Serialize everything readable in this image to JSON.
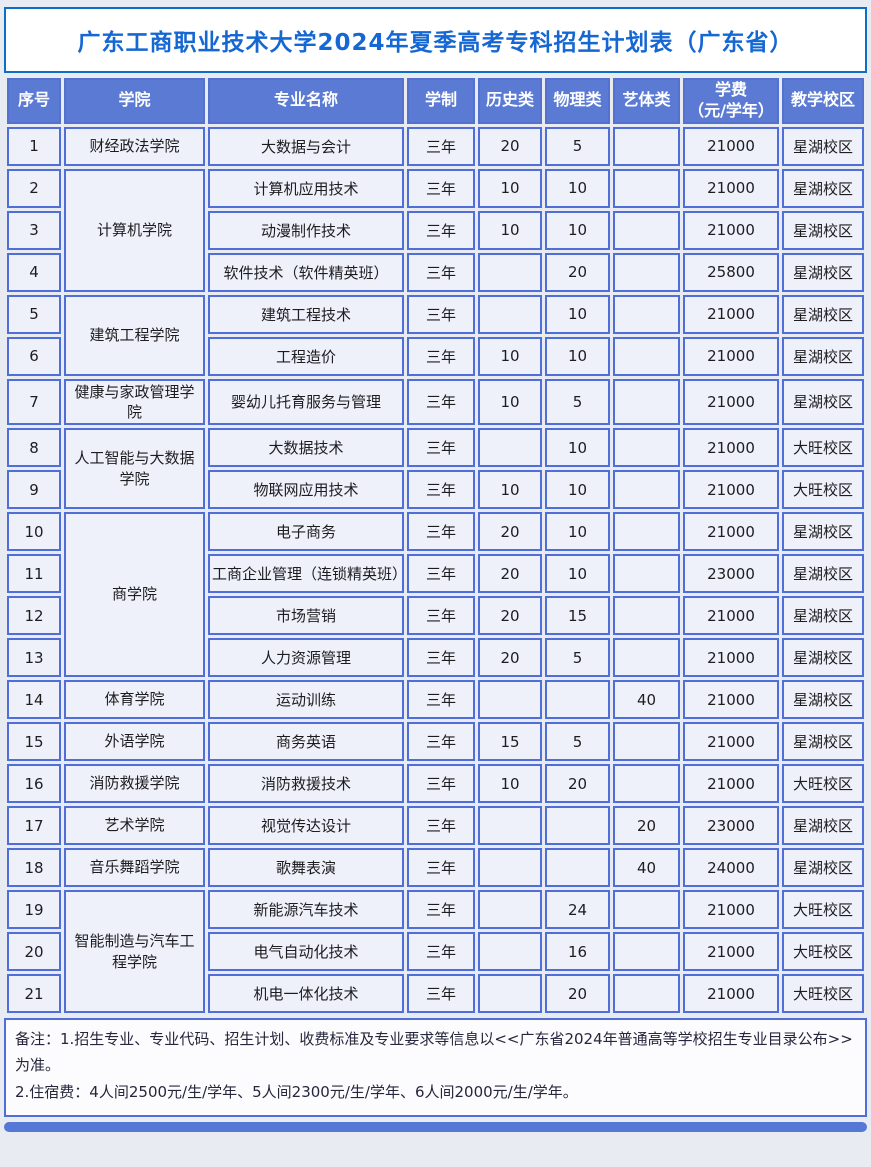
{
  "page": {
    "title": "广东工商职业技术大学2024年夏季高考专科招生计划表（广东省）"
  },
  "colors": {
    "title_text": "#1567d3",
    "title_border": "#0d6ec6",
    "header_bg": "#5b7ad3",
    "cell_bg": "#eef1fa",
    "cell_border": "#4f6ed8",
    "scrollbar": "#5577d6"
  },
  "table": {
    "columns": [
      {
        "key": "index",
        "label": "序号"
      },
      {
        "key": "college",
        "label": "学院"
      },
      {
        "key": "major",
        "label": "专业名称"
      },
      {
        "key": "duration",
        "label": "学制"
      },
      {
        "key": "history",
        "label": "历史类"
      },
      {
        "key": "physics",
        "label": "物理类"
      },
      {
        "key": "arts",
        "label": "艺体类"
      },
      {
        "key": "tuition",
        "label": "学费",
        "sublabel": "（元/学年）"
      },
      {
        "key": "campus",
        "label": "教学校区"
      }
    ],
    "rows": [
      {
        "index": "1",
        "college": "财经政法学院",
        "college_rowspan": 1,
        "major": "大数据与会计",
        "duration": "三年",
        "history": "20",
        "physics": "5",
        "arts": "",
        "tuition": "21000",
        "campus": "星湖校区"
      },
      {
        "index": "2",
        "college": "计算机学院",
        "college_rowspan": 3,
        "major": "计算机应用技术",
        "duration": "三年",
        "history": "10",
        "physics": "10",
        "arts": "",
        "tuition": "21000",
        "campus": "星湖校区"
      },
      {
        "index": "3",
        "major": "动漫制作技术",
        "duration": "三年",
        "history": "10",
        "physics": "10",
        "arts": "",
        "tuition": "21000",
        "campus": "星湖校区"
      },
      {
        "index": "4",
        "major": "软件技术（软件精英班）",
        "duration": "三年",
        "history": "",
        "physics": "20",
        "arts": "",
        "tuition": "25800",
        "campus": "星湖校区"
      },
      {
        "index": "5",
        "college": "建筑工程学院",
        "college_rowspan": 2,
        "major": "建筑工程技术",
        "duration": "三年",
        "history": "",
        "physics": "10",
        "arts": "",
        "tuition": "21000",
        "campus": "星湖校区"
      },
      {
        "index": "6",
        "major": "工程造价",
        "duration": "三年",
        "history": "10",
        "physics": "10",
        "arts": "",
        "tuition": "21000",
        "campus": "星湖校区"
      },
      {
        "index": "7",
        "college": "健康与家政管理学院",
        "college_rowspan": 1,
        "major": "婴幼儿托育服务与管理",
        "duration": "三年",
        "history": "10",
        "physics": "5",
        "arts": "",
        "tuition": "21000",
        "campus": "星湖校区"
      },
      {
        "index": "8",
        "college": "人工智能与大数据学院",
        "college_rowspan": 2,
        "major": "大数据技术",
        "duration": "三年",
        "history": "",
        "physics": "10",
        "arts": "",
        "tuition": "21000",
        "campus": "大旺校区"
      },
      {
        "index": "9",
        "major": "物联网应用技术",
        "duration": "三年",
        "history": "10",
        "physics": "10",
        "arts": "",
        "tuition": "21000",
        "campus": "大旺校区"
      },
      {
        "index": "10",
        "college": "商学院",
        "college_rowspan": 4,
        "major": "电子商务",
        "duration": "三年",
        "history": "20",
        "physics": "10",
        "arts": "",
        "tuition": "21000",
        "campus": "星湖校区"
      },
      {
        "index": "11",
        "major": "工商企业管理（连锁精英班）",
        "duration": "三年",
        "history": "20",
        "physics": "10",
        "arts": "",
        "tuition": "23000",
        "campus": "星湖校区"
      },
      {
        "index": "12",
        "major": "市场营销",
        "duration": "三年",
        "history": "20",
        "physics": "15",
        "arts": "",
        "tuition": "21000",
        "campus": "星湖校区"
      },
      {
        "index": "13",
        "major": "人力资源管理",
        "duration": "三年",
        "history": "20",
        "physics": "5",
        "arts": "",
        "tuition": "21000",
        "campus": "星湖校区"
      },
      {
        "index": "14",
        "college": "体育学院",
        "college_rowspan": 1,
        "major": "运动训练",
        "duration": "三年",
        "history": "",
        "physics": "",
        "arts": "40",
        "tuition": "21000",
        "campus": "星湖校区"
      },
      {
        "index": "15",
        "college": "外语学院",
        "college_rowspan": 1,
        "major": "商务英语",
        "duration": "三年",
        "history": "15",
        "physics": "5",
        "arts": "",
        "tuition": "21000",
        "campus": "星湖校区"
      },
      {
        "index": "16",
        "college": "消防救援学院",
        "college_rowspan": 1,
        "major": "消防救援技术",
        "duration": "三年",
        "history": "10",
        "physics": "20",
        "arts": "",
        "tuition": "21000",
        "campus": "大旺校区"
      },
      {
        "index": "17",
        "college": "艺术学院",
        "college_rowspan": 1,
        "major": "视觉传达设计",
        "duration": "三年",
        "history": "",
        "physics": "",
        "arts": "20",
        "tuition": "23000",
        "campus": "星湖校区"
      },
      {
        "index": "18",
        "college": "音乐舞蹈学院",
        "college_rowspan": 1,
        "major": "歌舞表演",
        "duration": "三年",
        "history": "",
        "physics": "",
        "arts": "40",
        "tuition": "24000",
        "campus": "星湖校区"
      },
      {
        "index": "19",
        "college": "智能制造与汽车工程学院",
        "college_rowspan": 3,
        "major": "新能源汽车技术",
        "duration": "三年",
        "history": "",
        "physics": "24",
        "arts": "",
        "tuition": "21000",
        "campus": "大旺校区"
      },
      {
        "index": "20",
        "major": "电气自动化技术",
        "duration": "三年",
        "history": "",
        "physics": "16",
        "arts": "",
        "tuition": "21000",
        "campus": "大旺校区"
      },
      {
        "index": "21",
        "major": "机电一体化技术",
        "duration": "三年",
        "history": "",
        "physics": "20",
        "arts": "",
        "tuition": "21000",
        "campus": "大旺校区"
      }
    ]
  },
  "notes": {
    "line1": "备注：1.招生专业、专业代码、招生计划、收费标准及专业要求等信息以<<广东省2024年普通高等学校招生专业目录公布>>为准。",
    "line2": "2.住宿费：4人间2500元/生/学年、5人间2300元/生/学年、6人间2000元/生/学年。"
  }
}
